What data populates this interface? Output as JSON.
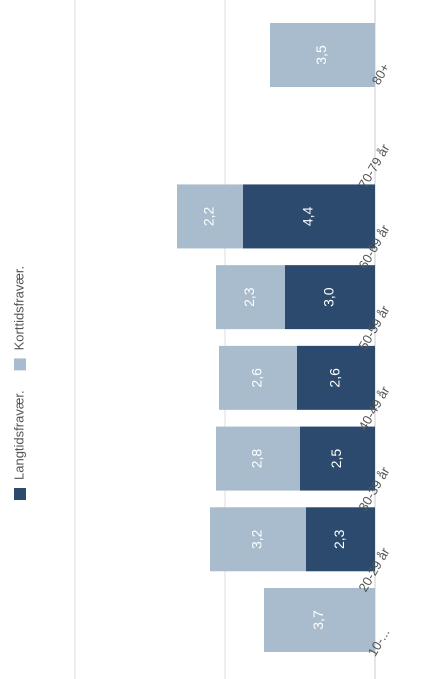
{
  "chart_data": {
    "type": "stacked_bar",
    "categories": [
      "10-...",
      "20-29 år",
      "30-39 år",
      "40-49 år",
      "50-59 år",
      "60-69 år",
      "70-79 år",
      "80+"
    ],
    "series": [
      {
        "name": "Langtidsfravær.",
        "color": "#2c4a6e",
        "values": [
          null,
          2.3,
          2.5,
          2.6,
          3.0,
          4.4,
          null,
          null
        ],
        "value_labels": [
          null,
          "2,3",
          "2,5",
          "2,6",
          "3,0",
          "4,4",
          null,
          null
        ]
      },
      {
        "name": "Korttidsfravær.",
        "color": "#a9bccd",
        "values": [
          3.7,
          3.2,
          2.8,
          2.6,
          2.3,
          2.2,
          null,
          3.5
        ],
        "value_labels": [
          "3,7",
          "3,2",
          "2,8",
          "2,6",
          "2,3",
          "2,2",
          null,
          "3,5"
        ]
      }
    ],
    "ylim": [
      0,
      10
    ],
    "yticks": [
      5,
      10
    ],
    "grid": true
  }
}
